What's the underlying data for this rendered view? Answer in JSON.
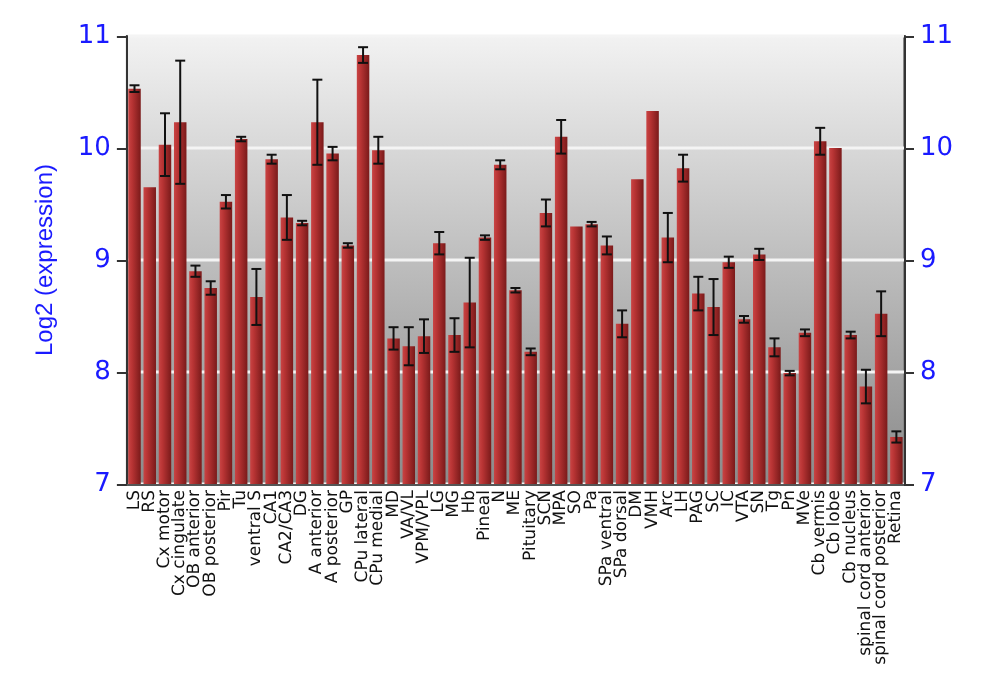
{
  "chart_data": {
    "type": "bar",
    "ylabel": "Log2 (expression)",
    "categories": [
      "LS",
      "RS",
      "Cx motor",
      "Cx cingulate",
      "OB anterior",
      "OB posterior",
      "Pir",
      "Tu",
      "ventral S",
      "CA1",
      "CA2/CA3",
      "DG",
      "A anterior",
      "A posterior",
      "GP",
      "CPu lateral",
      "CPu medial",
      "MD",
      "VA/VL",
      "VPM/VPL",
      "LG",
      "MG",
      "Hb",
      "Pineal",
      "N",
      "ME",
      "Pituitary",
      "SCN",
      "MPA",
      "SO",
      "Pa",
      "SPa ventral",
      "SPa dorsal",
      "DM",
      "VMH",
      "Arc",
      "LH",
      "PAG",
      "SC",
      "IC",
      "VTA",
      "SN",
      "Tg",
      "Pn",
      "MVe",
      "Cb vermis",
      "Cb lobe",
      "Cb nucleus",
      "spinal cord anterior",
      "spinal cord posterior",
      "Retina"
    ],
    "values": [
      10.53,
      9.65,
      10.03,
      10.23,
      8.9,
      8.75,
      9.52,
      10.08,
      8.67,
      9.9,
      9.38,
      9.33,
      10.23,
      9.95,
      9.13,
      10.83,
      9.98,
      8.3,
      8.23,
      8.32,
      9.15,
      8.33,
      8.62,
      9.2,
      9.85,
      8.73,
      8.18,
      9.42,
      10.1,
      9.3,
      9.32,
      9.13,
      8.43,
      9.72,
      10.33,
      9.2,
      9.82,
      8.7,
      8.58,
      8.98,
      8.47,
      9.05,
      8.22,
      7.99,
      8.35,
      10.06,
      10.0,
      8.33,
      7.87,
      8.52,
      7.42
    ],
    "errors": [
      0.03,
      null,
      0.28,
      0.55,
      0.05,
      0.06,
      0.06,
      0.02,
      0.25,
      0.04,
      0.2,
      0.02,
      0.38,
      0.06,
      0.02,
      0.07,
      0.12,
      0.1,
      0.17,
      0.15,
      0.1,
      0.15,
      0.4,
      0.02,
      0.04,
      0.02,
      0.03,
      0.12,
      0.15,
      null,
      0.02,
      0.08,
      0.12,
      null,
      null,
      0.22,
      0.12,
      0.15,
      0.25,
      0.05,
      0.03,
      0.05,
      0.08,
      0.02,
      0.03,
      0.12,
      null,
      0.03,
      0.15,
      0.2,
      0.05
    ],
    "color": "#b83434",
    "ylim": [
      7,
      11
    ],
    "yticks": [
      7,
      8,
      9,
      10,
      11
    ],
    "y2lim": [
      7,
      11
    ],
    "y2ticks": [
      7,
      8,
      9,
      10,
      11
    ],
    "grid": "y"
  }
}
